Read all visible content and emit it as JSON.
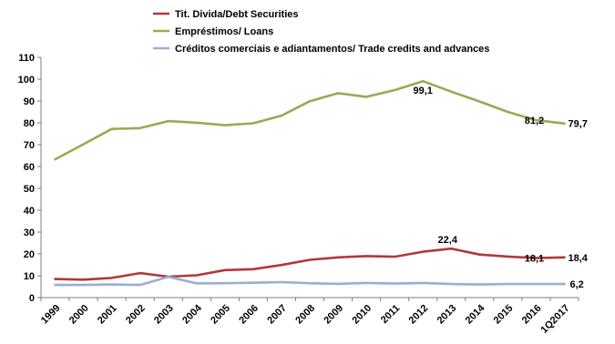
{
  "chart_data": {
    "type": "line",
    "categories": [
      "1999",
      "2000",
      "2001",
      "2002",
      "2003",
      "2004",
      "2005",
      "2006",
      "2007",
      "2008",
      "2009",
      "2010",
      "2011",
      "2012",
      "2013",
      "2014",
      "2015",
      "2016",
      "1Q2017"
    ],
    "ylim": [
      0,
      110
    ],
    "yticks": [
      0,
      10,
      20,
      30,
      40,
      50,
      60,
      70,
      80,
      90,
      100,
      110
    ],
    "grid": false,
    "legend_position": "top",
    "series": [
      {
        "name": "Tit. Divida/Debt Securities",
        "color": "#b03a3a",
        "values": [
          8.5,
          8.2,
          9.0,
          11.2,
          9.6,
          10.2,
          12.6,
          13.0,
          14.9,
          17.3,
          18.4,
          19.0,
          18.7,
          21.0,
          22.4,
          19.7,
          18.8,
          18.1,
          18.4
        ]
      },
      {
        "name": "Empréstimos/ Loans",
        "color": "#93ad53",
        "values": [
          63.3,
          70.2,
          77.2,
          77.6,
          80.8,
          80.1,
          78.9,
          79.8,
          83.3,
          89.9,
          93.6,
          91.9,
          95.0,
          99.1,
          94.3,
          89.8,
          85.0,
          81.2,
          79.7
        ]
      },
      {
        "name": "Créditos comerciais e adiantamentos/ Trade credits and advances",
        "color": "#9aaed6",
        "values": [
          5.8,
          5.8,
          6.0,
          5.8,
          9.5,
          6.5,
          6.6,
          6.8,
          7.1,
          6.6,
          6.3,
          6.7,
          6.4,
          6.7,
          6.2,
          6.0,
          6.2,
          6.2,
          6.2
        ]
      }
    ],
    "annotations": [
      {
        "series": 1,
        "index": 13,
        "label": "99,1"
      },
      {
        "series": 1,
        "index": 17,
        "label": "81,2"
      },
      {
        "series": 1,
        "index": 18,
        "label": "79,7"
      },
      {
        "series": 0,
        "index": 14,
        "label": "22,4"
      },
      {
        "series": 0,
        "index": 17,
        "label": "18,1"
      },
      {
        "series": 0,
        "index": 18,
        "label": "18,4"
      },
      {
        "series": 2,
        "index": 18,
        "label": "6,2"
      }
    ]
  }
}
